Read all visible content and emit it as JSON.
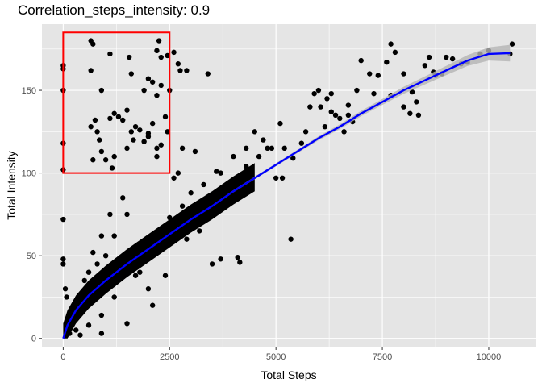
{
  "chart_data": {
    "type": "scatter",
    "title": "Correlation_steps_intensity: 0.9",
    "xlabel": "Total Steps",
    "ylabel": "Total Intensity",
    "xlim": [
      -500,
      11100
    ],
    "ylim": [
      -5,
      190
    ],
    "x_ticks": [
      0,
      2500,
      5000,
      7500,
      10000
    ],
    "y_ticks": [
      0,
      50,
      100,
      150
    ],
    "grid": true,
    "background": "#e5e5e5",
    "grid_color": "#ffffff",
    "point_color": "#000000",
    "trend_color": "#0000ff",
    "ribbon_color": "#b4b4b4",
    "highlight_color": "#ff0000",
    "highlight_box": {
      "x": [
        0,
        2500
      ],
      "y": [
        100,
        185
      ]
    },
    "trend": {
      "x": [
        0,
        100,
        300,
        600,
        1000,
        1500,
        2000,
        2500,
        3000,
        3500,
        4000,
        4500,
        5000,
        5500,
        6000,
        6500,
        7000,
        7500,
        8000,
        8500,
        9000,
        9500,
        10000,
        10500
      ],
      "y": [
        0,
        8,
        17,
        26,
        35,
        45,
        54,
        63,
        72,
        80,
        89,
        97,
        105,
        113,
        121,
        128,
        136,
        143,
        150,
        156,
        162,
        168,
        172,
        172.5
      ],
      "band": [
        0.5,
        0.4,
        0.3,
        0.3,
        0.3,
        0.3,
        0.3,
        0.4,
        0.5,
        0.6,
        0.7,
        0.8,
        0.9,
        1.0,
        1.2,
        1.4,
        1.6,
        1.8,
        2.1,
        2.4,
        2.8,
        3.3,
        4.0,
        5.0
      ]
    },
    "points": [
      [
        0,
        165
      ],
      [
        0,
        163
      ],
      [
        0,
        150
      ],
      [
        0,
        118
      ],
      [
        0,
        102
      ],
      [
        0,
        72
      ],
      [
        0,
        48
      ],
      [
        0,
        45
      ],
      [
        50,
        30
      ],
      [
        80,
        25
      ],
      [
        650,
        180
      ],
      [
        700,
        178
      ],
      [
        650,
        162
      ],
      [
        1100,
        172
      ],
      [
        1550,
        170
      ],
      [
        1600,
        160
      ],
      [
        2250,
        180
      ],
      [
        2200,
        174
      ],
      [
        2300,
        170
      ],
      [
        2450,
        171
      ],
      [
        650,
        128
      ],
      [
        850,
        120
      ],
      [
        900,
        113
      ],
      [
        1000,
        108
      ],
      [
        1200,
        110
      ],
      [
        750,
        132
      ],
      [
        900,
        150
      ],
      [
        1200,
        136
      ],
      [
        1300,
        134
      ],
      [
        1400,
        132
      ],
      [
        1500,
        138
      ],
      [
        1600,
        125
      ],
      [
        1700,
        128
      ],
      [
        1800,
        126
      ],
      [
        1900,
        119
      ],
      [
        2000,
        124
      ],
      [
        2100,
        130
      ],
      [
        2200,
        115
      ],
      [
        2300,
        117
      ],
      [
        2400,
        134
      ],
      [
        2450,
        125
      ],
      [
        1500,
        115
      ],
      [
        1150,
        103
      ],
      [
        1900,
        150
      ],
      [
        2000,
        157
      ],
      [
        2100,
        155
      ],
      [
        2200,
        147
      ],
      [
        2300,
        153
      ],
      [
        2000,
        122
      ],
      [
        2200,
        110
      ],
      [
        2500,
        150
      ],
      [
        2750,
        162
      ],
      [
        2900,
        162
      ],
      [
        3400,
        160
      ],
      [
        2600,
        173
      ],
      [
        2700,
        166
      ],
      [
        700,
        108
      ],
      [
        800,
        125
      ],
      [
        1100,
        133
      ],
      [
        1650,
        120
      ],
      [
        3500,
        45
      ],
      [
        3700,
        48
      ],
      [
        4100,
        49
      ],
      [
        4150,
        46
      ],
      [
        5350,
        60
      ],
      [
        5000,
        97
      ],
      [
        5150,
        97
      ],
      [
        4800,
        115
      ],
      [
        4700,
        120
      ],
      [
        4500,
        125
      ],
      [
        5100,
        130
      ],
      [
        5800,
        140
      ],
      [
        5900,
        148
      ],
      [
        6000,
        150
      ],
      [
        6200,
        145
      ],
      [
        6300,
        137
      ],
      [
        6400,
        135
      ],
      [
        6500,
        133
      ],
      [
        6800,
        131
      ],
      [
        6700,
        135
      ],
      [
        6700,
        141
      ],
      [
        6900,
        150
      ],
      [
        7000,
        168
      ],
      [
        7200,
        160
      ],
      [
        7400,
        159
      ],
      [
        7600,
        167
      ],
      [
        7700,
        178
      ],
      [
        7800,
        173
      ],
      [
        8000,
        160
      ],
      [
        8200,
        149
      ],
      [
        8300,
        143
      ],
      [
        8350,
        135
      ],
      [
        8500,
        165
      ],
      [
        8600,
        170
      ],
      [
        8700,
        161
      ],
      [
        8750,
        159
      ],
      [
        8900,
        160
      ],
      [
        9000,
        170
      ],
      [
        9150,
        169
      ],
      [
        9350,
        166
      ],
      [
        9500,
        167
      ],
      [
        9800,
        172
      ],
      [
        10500,
        172
      ],
      [
        10550,
        178
      ],
      [
        10000,
        174
      ],
      [
        8000,
        140
      ],
      [
        8150,
        136
      ],
      [
        7700,
        147
      ],
      [
        6600,
        125
      ],
      [
        6150,
        128
      ],
      [
        5600,
        118
      ],
      [
        5400,
        109
      ],
      [
        4300,
        104
      ],
      [
        4000,
        92
      ],
      [
        3700,
        100
      ],
      [
        3300,
        93
      ],
      [
        3000,
        88
      ],
      [
        2800,
        80
      ],
      [
        2500,
        73
      ],
      [
        2200,
        60
      ],
      [
        1700,
        38
      ],
      [
        1200,
        25
      ],
      [
        600,
        8
      ],
      [
        900,
        14
      ],
      [
        300,
        5
      ],
      [
        150,
        3
      ],
      [
        2100,
        20
      ],
      [
        1500,
        9
      ],
      [
        900,
        3
      ],
      [
        400,
        2
      ],
      [
        4600,
        110
      ],
      [
        4900,
        115
      ],
      [
        5200,
        115
      ],
      [
        5700,
        125
      ],
      [
        6050,
        140
      ],
      [
        6300,
        148
      ],
      [
        7300,
        148
      ],
      [
        3600,
        101
      ],
      [
        4000,
        110
      ],
      [
        4300,
        115
      ],
      [
        2800,
        115
      ],
      [
        3100,
        113
      ],
      [
        2700,
        100
      ],
      [
        2600,
        97
      ],
      [
        3000,
        70
      ],
      [
        3200,
        65
      ],
      [
        2900,
        60
      ],
      [
        2400,
        38
      ],
      [
        2000,
        30
      ],
      [
        1800,
        40
      ],
      [
        1000,
        50
      ],
      [
        800,
        45
      ],
      [
        600,
        40
      ],
      [
        500,
        35
      ],
      [
        1200,
        62
      ],
      [
        1500,
        75
      ],
      [
        1400,
        85
      ],
      [
        1100,
        75
      ],
      [
        900,
        62
      ],
      [
        700,
        52
      ]
    ]
  }
}
